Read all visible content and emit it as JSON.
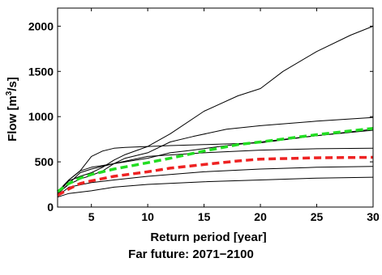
{
  "caption": "Far future: 2071−2100",
  "chart_data": {
    "type": "line",
    "xlabel": "Return period [year]",
    "ylabel_main": "Flow [m",
    "ylabel_sup": "3",
    "ylabel_tail": "/s]",
    "xlim": [
      2,
      30
    ],
    "ylim": [
      0,
      2200
    ],
    "xticks": [
      5,
      10,
      15,
      20,
      25,
      30
    ],
    "yticks": [
      0,
      500,
      1000,
      1500,
      2000
    ],
    "grid": false,
    "series": [
      {
        "color": "#000000",
        "style": "solid",
        "x": [
          2,
          3,
          4,
          5,
          6,
          7,
          8,
          10,
          12,
          15,
          18,
          20,
          22,
          25,
          28,
          30
        ],
        "y": [
          150,
          290,
          340,
          380,
          440,
          520,
          580,
          670,
          810,
          1060,
          1230,
          1310,
          1500,
          1720,
          1900,
          2000
        ]
      },
      {
        "color": "#000000",
        "style": "solid",
        "x": [
          2,
          3,
          4,
          5,
          6,
          7,
          8,
          10,
          12,
          15,
          20,
          25,
          30
        ],
        "y": [
          170,
          300,
          400,
          560,
          620,
          650,
          660,
          670,
          680,
          690,
          710,
          790,
          860
        ]
      },
      {
        "color": "#000000",
        "style": "solid",
        "x": [
          2,
          3,
          4,
          5,
          6,
          7,
          8,
          10,
          12,
          14,
          17,
          20,
          25,
          30
        ],
        "y": [
          150,
          250,
          310,
          350,
          400,
          480,
          540,
          600,
          720,
          780,
          860,
          900,
          950,
          990
        ]
      },
      {
        "color": "#000000",
        "style": "solid",
        "x": [
          2,
          3,
          4,
          5,
          6,
          8,
          10,
          12,
          14,
          17,
          20,
          25,
          30
        ],
        "y": [
          160,
          300,
          400,
          440,
          460,
          500,
          540,
          600,
          630,
          680,
          720,
          790,
          850
        ]
      },
      {
        "color": "#000000",
        "style": "solid",
        "x": [
          2,
          3,
          4,
          5,
          7,
          10,
          15,
          20,
          25,
          30
        ],
        "y": [
          140,
          260,
          380,
          420,
          480,
          560,
          600,
          630,
          645,
          650
        ]
      },
      {
        "color": "#000000",
        "style": "solid",
        "x": [
          2,
          3,
          5,
          7,
          10,
          15,
          20,
          25,
          30
        ],
        "y": [
          120,
          220,
          270,
          300,
          340,
          390,
          420,
          440,
          450
        ]
      },
      {
        "color": "#000000",
        "style": "solid",
        "x": [
          2,
          3,
          5,
          7,
          10,
          15,
          20,
          25,
          30
        ],
        "y": [
          110,
          150,
          180,
          220,
          250,
          280,
          300,
          320,
          330
        ]
      },
      {
        "color": "#22dd22",
        "style": "dashed",
        "x": [
          2,
          3,
          4,
          5,
          7,
          10,
          12,
          15,
          18,
          20,
          25,
          30
        ],
        "y": [
          170,
          260,
          320,
          360,
          420,
          490,
          540,
          620,
          690,
          720,
          800,
          870
        ]
      },
      {
        "color": "#ee2222",
        "style": "dashed",
        "x": [
          2,
          3,
          4,
          5,
          7,
          10,
          12,
          15,
          18,
          20,
          25,
          30
        ],
        "y": [
          130,
          200,
          260,
          290,
          340,
          390,
          430,
          470,
          510,
          530,
          545,
          550
        ]
      }
    ]
  }
}
